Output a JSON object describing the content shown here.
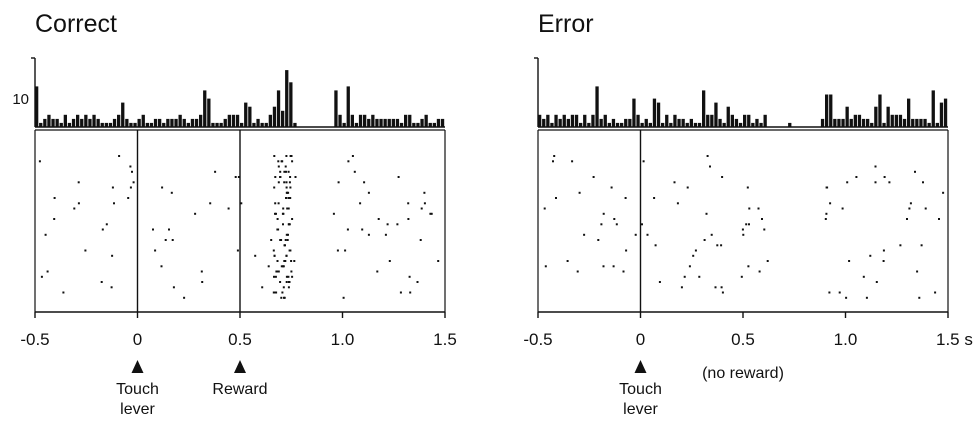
{
  "chart_data": [
    {
      "type": "scatter",
      "panel": "raster-histogram",
      "title": "Correct",
      "xlabel": "",
      "ylabel": "",
      "xlim": [
        -0.5,
        1.5
      ],
      "xticks": [
        "-0.5",
        "0",
        "0.5",
        "1.0",
        "1.5"
      ],
      "hist_ytick": "10",
      "hist_ymax": 16,
      "events": [
        {
          "x": 0,
          "label": [
            "Touch",
            "lever"
          ]
        },
        {
          "x": 0.5,
          "label": [
            "Reward"
          ]
        }
      ],
      "silent_windows": [
        [
          0.78,
          0.95
        ]
      ],
      "burst_windows": [
        [
          0.66,
          0.75
        ]
      ],
      "trials": 28
    },
    {
      "type": "scatter",
      "panel": "raster-histogram",
      "title": "Error",
      "xlabel": "",
      "ylabel": "",
      "xlim": [
        -0.5,
        1.5
      ],
      "xticks": [
        "-0.5",
        "0",
        "0.5",
        "1.0",
        "1.5 s"
      ],
      "hist_ytick": "",
      "hist_ymax": 16,
      "events": [
        {
          "x": 0,
          "label": [
            "Touch",
            "lever"
          ]
        }
      ],
      "annotation": "(no reward)",
      "annotation_x": 0.5,
      "silent_windows": [
        [
          0.62,
          0.88
        ]
      ],
      "burst_windows": [],
      "trials": 28
    }
  ]
}
